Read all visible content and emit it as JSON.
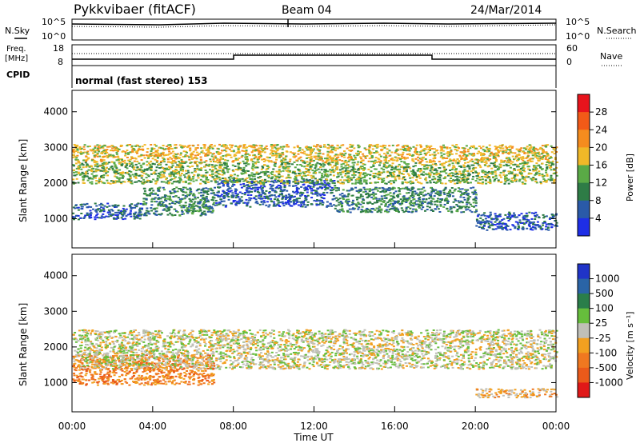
{
  "header": {
    "station": "Pykkvibaer (fitACF)",
    "beam": "Beam 04",
    "date": "24/Mar/2014"
  },
  "top_panels": {
    "nsky_label": "N.Sky",
    "nsearch_label": "N.Search",
    "freq_label_1": "Freq.",
    "freq_label_2": "[MHz]",
    "nave_label": "Nave",
    "cpid_label": "CPID",
    "cpid_text": "normal (fast stereo) 153",
    "noise_ticks_left": [
      "10^5",
      "10^0"
    ],
    "noise_ticks_right": [
      "10^5",
      "10^0"
    ],
    "freq_ticks": [
      "18",
      "8"
    ],
    "nave_ticks": [
      "60",
      "0"
    ]
  },
  "colorbars": {
    "power": {
      "label": "Power [dB]",
      "ticks": [
        "28",
        "24",
        "20",
        "16",
        "12",
        "8",
        "4"
      ],
      "colors": [
        "#e8141c",
        "#f25a18",
        "#f58c1e",
        "#f0b828",
        "#5aaa46",
        "#2e7c46",
        "#2a5aa8",
        "#1e2ee6"
      ]
    },
    "velocity": {
      "label": "Velocity [m s⁻¹]",
      "ticks": [
        "1000",
        "500",
        "100",
        "25",
        "-25",
        "-100",
        "-500",
        "-1000"
      ],
      "colors": [
        "#2034c8",
        "#2a64a6",
        "#2a7e4a",
        "#66be3c",
        "#c0c0b8",
        "#f2a020",
        "#f07820",
        "#ea5a1a",
        "#e01818"
      ]
    }
  },
  "chart_data": [
    {
      "type": "heatmap",
      "name": "Power",
      "ylabel": "Slant Range [km]",
      "y_ticks": [
        "4000",
        "3000",
        "2000",
        "1000"
      ],
      "ylim": [
        180,
        4600
      ],
      "xlim_hours": [
        0,
        24
      ],
      "bands": [
        {
          "t": [
            0,
            3.5
          ],
          "r": [
            1000,
            1450
          ],
          "level": 6
        },
        {
          "t": [
            3.5,
            7
          ],
          "r": [
            1100,
            1900
          ],
          "level": 5
        },
        {
          "t": [
            7,
            13
          ],
          "r": [
            1350,
            2100
          ],
          "level": 6
        },
        {
          "t": [
            13,
            20
          ],
          "r": [
            1200,
            1900
          ],
          "level": 5
        },
        {
          "t": [
            20,
            24
          ],
          "r": [
            700,
            1200
          ],
          "level": 6
        },
        {
          "t": [
            0,
            24
          ],
          "r": [
            2000,
            2600
          ],
          "level": 4
        },
        {
          "t": [
            0,
            24
          ],
          "r": [
            2600,
            3100
          ],
          "level": 3
        }
      ]
    },
    {
      "type": "heatmap",
      "name": "Velocity",
      "ylabel": "Slant Range [km]",
      "y_ticks": [
        "4000",
        "3000",
        "2000",
        "1000"
      ],
      "ylim": [
        180,
        4600
      ],
      "xlim_hours": [
        0,
        24
      ],
      "bands": [
        {
          "t": [
            0,
            7
          ],
          "r": [
            950,
            1800
          ],
          "level": 6
        },
        {
          "t": [
            0,
            24
          ],
          "r": [
            1400,
            2500
          ],
          "level": 4
        },
        {
          "t": [
            20,
            24
          ],
          "r": [
            600,
            850
          ],
          "level": 5
        }
      ]
    }
  ],
  "xaxis": {
    "ticks": [
      "00:00",
      "04:00",
      "08:00",
      "12:00",
      "16:00",
      "20:00",
      "00:00"
    ],
    "label": "Time UT"
  }
}
